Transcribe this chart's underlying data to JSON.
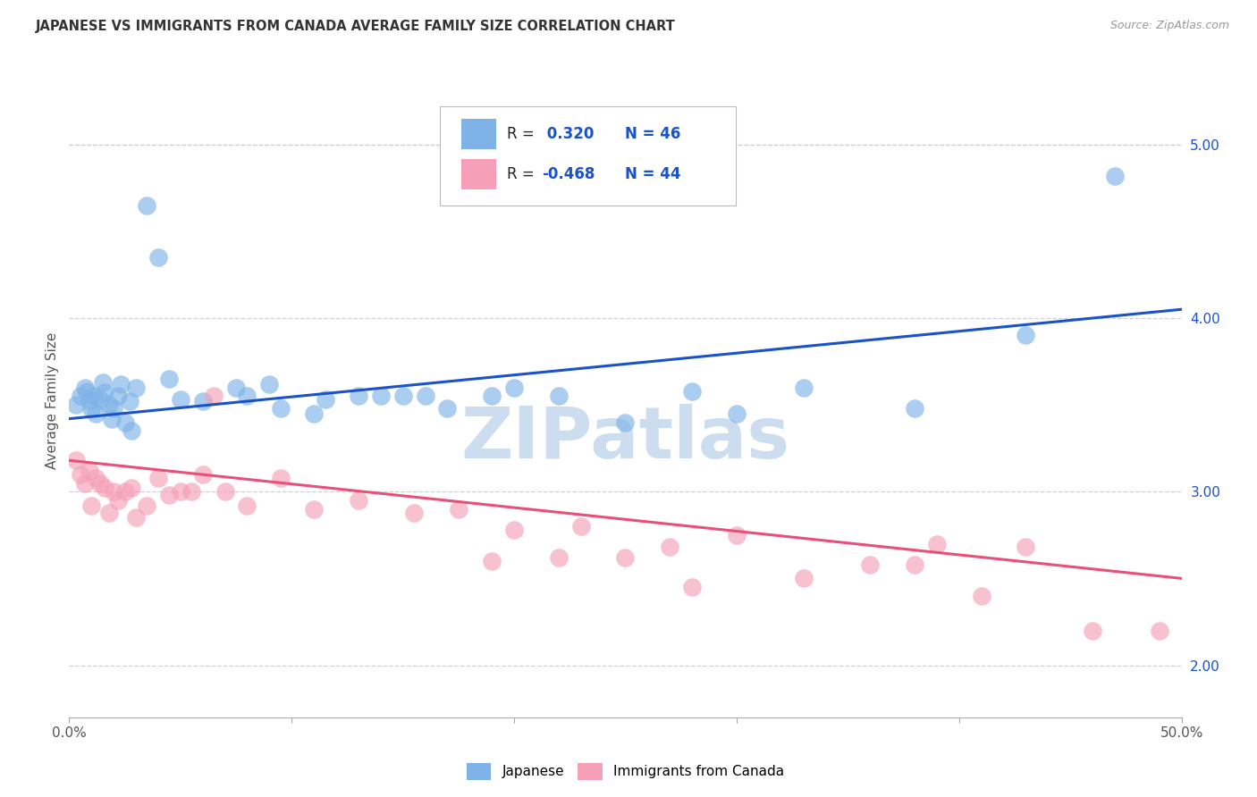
{
  "title": "JAPANESE VS IMMIGRANTS FROM CANADA AVERAGE FAMILY SIZE CORRELATION CHART",
  "source": "Source: ZipAtlas.com",
  "ylabel": "Average Family Size",
  "right_yticks": [
    2.0,
    3.0,
    4.0,
    5.0
  ],
  "legend_blue_r": "R =  0.320",
  "legend_blue_n": "N = 46",
  "legend_pink_r": "R = -0.468",
  "legend_pink_n": "N = 44",
  "legend_label_blue": "Japanese",
  "legend_label_pink": "Immigrants from Canada",
  "blue_scatter_x": [
    0.3,
    0.5,
    0.7,
    0.8,
    0.9,
    1.0,
    1.1,
    1.2,
    1.4,
    1.5,
    1.6,
    1.8,
    1.9,
    2.0,
    2.2,
    2.3,
    2.5,
    2.7,
    2.8,
    3.0,
    3.5,
    4.0,
    4.5,
    5.0,
    6.0,
    7.5,
    9.0,
    11.0,
    13.0,
    15.0,
    17.0,
    19.0,
    22.0,
    25.0,
    28.0,
    30.0,
    33.0,
    38.0,
    43.0,
    47.0,
    8.0,
    9.5,
    11.5,
    14.0,
    16.0,
    20.0
  ],
  "blue_scatter_y": [
    3.5,
    3.55,
    3.6,
    3.58,
    3.52,
    3.48,
    3.55,
    3.45,
    3.53,
    3.63,
    3.57,
    3.5,
    3.42,
    3.48,
    3.55,
    3.62,
    3.4,
    3.52,
    3.35,
    3.6,
    4.65,
    4.35,
    3.65,
    3.53,
    3.52,
    3.6,
    3.62,
    3.45,
    3.55,
    3.55,
    3.48,
    3.55,
    3.55,
    3.4,
    3.58,
    3.45,
    3.6,
    3.48,
    3.9,
    4.82,
    3.55,
    3.48,
    3.53,
    3.55,
    3.55,
    3.6
  ],
  "pink_scatter_x": [
    0.3,
    0.5,
    0.7,
    0.9,
    1.0,
    1.2,
    1.4,
    1.6,
    1.8,
    2.0,
    2.2,
    2.5,
    2.8,
    3.0,
    3.5,
    4.0,
    4.5,
    5.0,
    5.5,
    6.0,
    7.0,
    8.0,
    9.5,
    11.0,
    13.0,
    15.5,
    17.5,
    20.0,
    23.0,
    25.0,
    27.0,
    30.0,
    33.0,
    36.0,
    39.0,
    41.0,
    43.0,
    46.0,
    6.5,
    19.0,
    22.0,
    28.0,
    38.0,
    49.0
  ],
  "pink_scatter_y": [
    3.18,
    3.1,
    3.05,
    3.12,
    2.92,
    3.08,
    3.05,
    3.02,
    2.88,
    3.0,
    2.95,
    3.0,
    3.02,
    2.85,
    2.92,
    3.08,
    2.98,
    3.0,
    3.0,
    3.1,
    3.0,
    2.92,
    3.08,
    2.9,
    2.95,
    2.88,
    2.9,
    2.78,
    2.8,
    2.62,
    2.68,
    2.75,
    2.5,
    2.58,
    2.7,
    2.4,
    2.68,
    2.2,
    3.55,
    2.6,
    2.62,
    2.45,
    2.58,
    2.2
  ],
  "blue_line_x": [
    0,
    50
  ],
  "blue_line_y_start": 3.42,
  "blue_line_y_end": 4.05,
  "pink_line_x": [
    0,
    50
  ],
  "pink_line_y_start": 3.18,
  "pink_line_y_end": 2.5,
  "background_color": "#ffffff",
  "blue_color": "#7fb3e8",
  "blue_line_color": "#1a52c9",
  "pink_color": "#f5a0b8",
  "pink_line_color": "#e8507a",
  "grid_color": "#d0d0d0",
  "title_color": "#333333",
  "watermark_text": "ZIPatlas",
  "watermark_color": "#ccddf0",
  "xlim": [
    0,
    50
  ],
  "ylim_bottom": 1.7,
  "ylim_top": 5.35
}
